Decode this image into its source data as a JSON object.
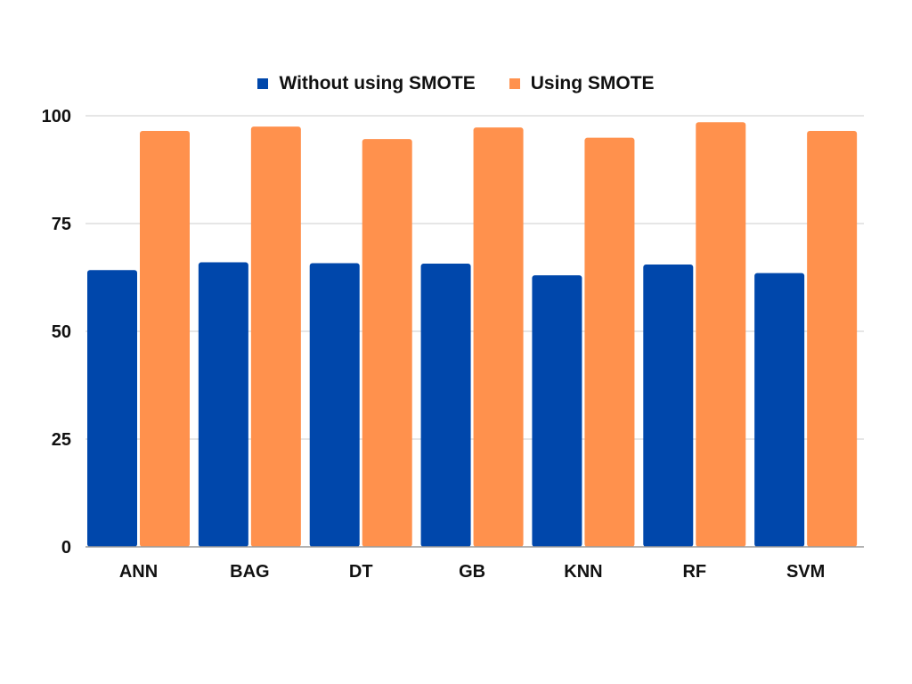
{
  "chart_data": {
    "type": "bar",
    "title": "",
    "xlabel": "",
    "ylabel": "",
    "categories": [
      "ANN",
      "BAG",
      "DT",
      "GB",
      "KNN",
      "RF",
      "SVM"
    ],
    "series": [
      {
        "name": "Without using SMOTE",
        "color": "#0047ab",
        "values": [
          64.2,
          66.0,
          65.8,
          65.7,
          63.0,
          65.5,
          63.5
        ]
      },
      {
        "name": "Using SMOTE",
        "color": "#ff914d",
        "values": [
          96.5,
          97.5,
          94.6,
          97.3,
          94.9,
          98.5,
          96.5
        ]
      }
    ],
    "ylim": [
      0,
      100
    ],
    "yticks": [
      0,
      25,
      50,
      75,
      100
    ],
    "grid": true,
    "legend_position": "top-center"
  }
}
